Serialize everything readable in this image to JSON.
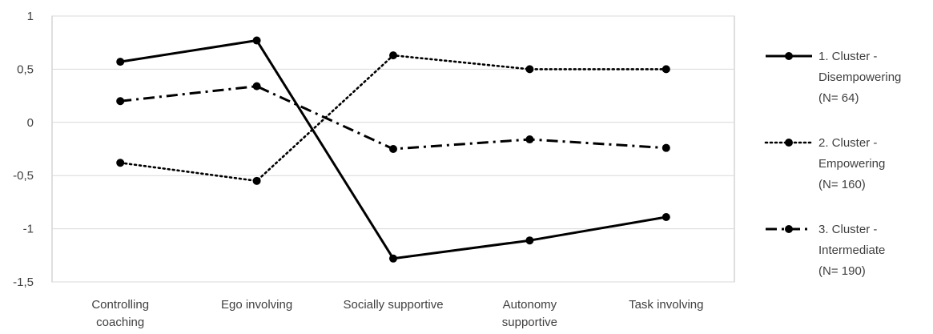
{
  "chart_data": {
    "type": "line",
    "categories": [
      [
        "Controlling",
        "coaching"
      ],
      [
        "Ego involving"
      ],
      [
        "Socially supportive"
      ],
      [
        "Autonomy",
        "supportive"
      ],
      [
        "Task involving"
      ]
    ],
    "y_ticks": [
      "1",
      "0,5",
      "0",
      "-0,5",
      "-1",
      "-1,5"
    ],
    "y_tick_values": [
      1,
      0.5,
      0,
      -0.5,
      -1,
      -1.5
    ],
    "ylim": [
      -1.5,
      1
    ],
    "grid": true,
    "legend_position": "right",
    "series": [
      {
        "name": [
          "1. Cluster -",
          "Disempowering",
          "(N= 64)"
        ],
        "style": "solid",
        "color": "#000000",
        "values": [
          0.57,
          0.77,
          -1.28,
          -1.11,
          -0.89
        ]
      },
      {
        "name": [
          "2. Cluster -",
          "Empowering",
          "(N= 160)"
        ],
        "style": "dotted",
        "color": "#000000",
        "values": [
          -0.38,
          -0.55,
          0.63,
          0.5,
          0.5
        ]
      },
      {
        "name": [
          "3. Cluster -",
          "Intermediate",
          "(N= 190)"
        ],
        "style": "dashdot",
        "color": "#000000",
        "values": [
          0.2,
          0.34,
          -0.25,
          -0.16,
          -0.24
        ]
      }
    ]
  }
}
